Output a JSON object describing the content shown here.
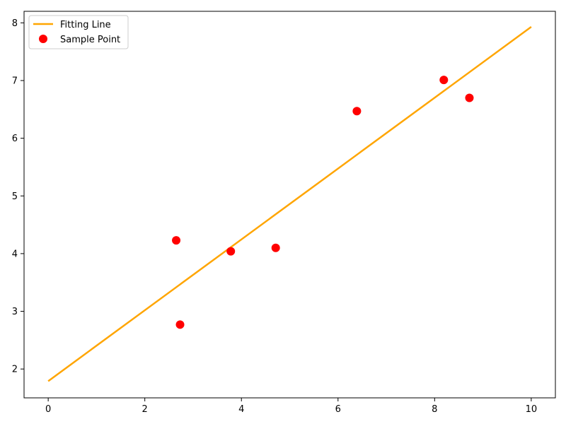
{
  "chart_data": {
    "type": "scatter",
    "title": "",
    "xlabel": "",
    "ylabel": "",
    "xlim": [
      -0.5,
      10.5
    ],
    "ylim": [
      1.5,
      8.2
    ],
    "x_ticks": [
      0,
      2,
      4,
      6,
      8,
      10
    ],
    "y_ticks": [
      2,
      3,
      4,
      5,
      6,
      7,
      8
    ],
    "x_tick_labels": [
      "0",
      "2",
      "4",
      "6",
      "8",
      "10"
    ],
    "y_tick_labels": [
      "2",
      "3",
      "4",
      "5",
      "6",
      "7",
      "8"
    ],
    "grid": false,
    "legend_position": "upper-left",
    "legend": {
      "line_label": "Fitting Line",
      "points_label": "Sample Point"
    },
    "series": [
      {
        "name": "Fitting Line",
        "kind": "line",
        "color": "#FFA500",
        "x": [
          0,
          10
        ],
        "y": [
          1.79,
          7.93
        ]
      },
      {
        "name": "Sample Point",
        "kind": "scatter",
        "color": "#FF0000",
        "x": [
          2.65,
          2.73,
          3.78,
          4.71,
          6.39,
          8.19,
          8.72
        ],
        "y": [
          4.23,
          2.77,
          4.04,
          4.1,
          6.47,
          7.01,
          6.7
        ]
      }
    ]
  }
}
